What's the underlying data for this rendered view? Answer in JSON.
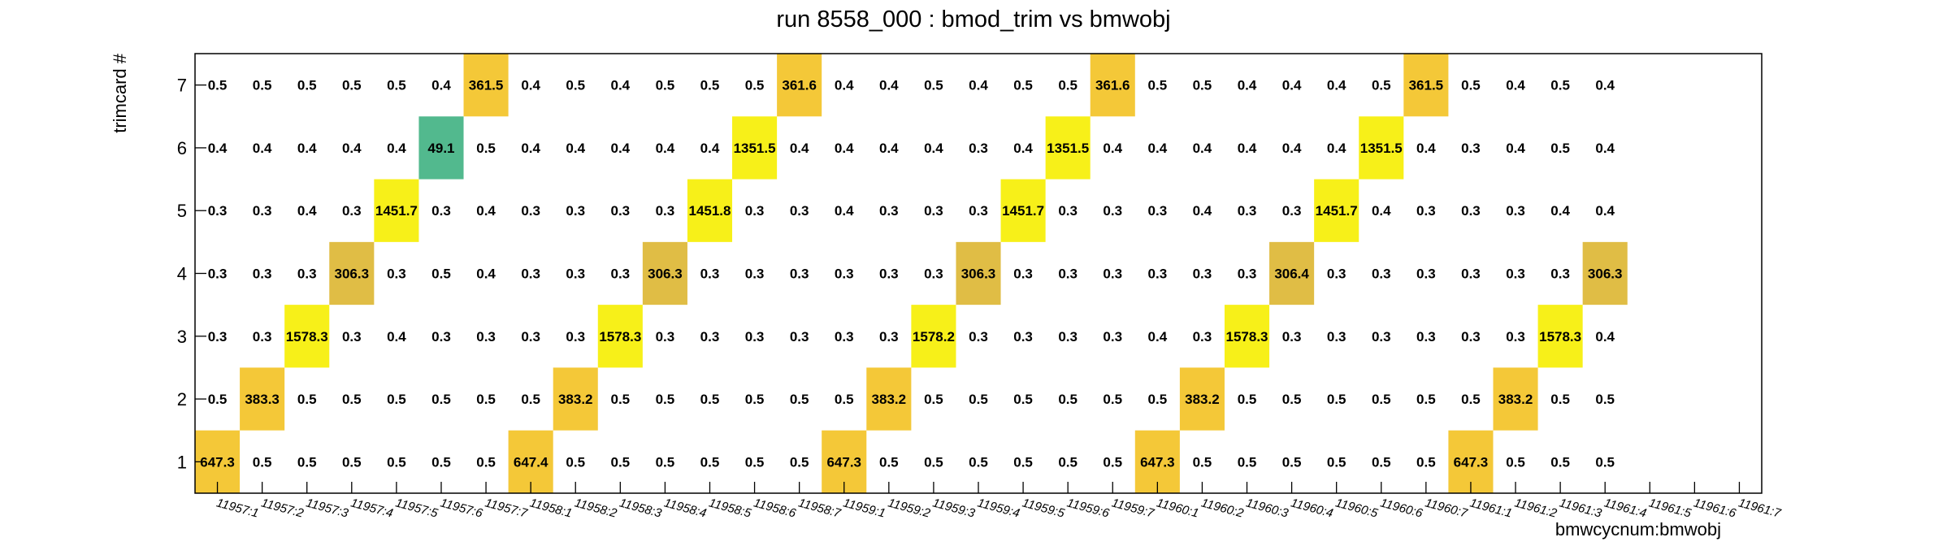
{
  "chart_data": {
    "type": "heatmap",
    "title": "run 8558_000 : bmod_trim vs bmwobj",
    "xlabel": "bmwcycnum:bmwobj",
    "ylabel": "trimcard #",
    "x_categories": [
      "11957:1",
      "11957:2",
      "11957:3",
      "11957:4",
      "11957:5",
      "11957:6",
      "11957:7",
      "11958:1",
      "11958:2",
      "11958:3",
      "11958:4",
      "11958:5",
      "11958:6",
      "11958:7",
      "11959:1",
      "11959:2",
      "11959:3",
      "11959:4",
      "11959:5",
      "11959:6",
      "11959:7",
      "11960:1",
      "11960:2",
      "11960:3",
      "11960:4",
      "11960:5",
      "11960:6",
      "11960:7",
      "11961:1",
      "11961:2",
      "11961:3",
      "11961:4",
      "11961:5",
      "11961:6",
      "11961:7"
    ],
    "y_categories": [
      "1",
      "2",
      "3",
      "4",
      "5",
      "6",
      "7"
    ],
    "rows": [
      {
        "y": "7",
        "values": [
          0.5,
          0.5,
          0.5,
          0.5,
          0.5,
          0.4,
          361.5,
          0.4,
          0.5,
          0.4,
          0.5,
          0.5,
          0.5,
          361.6,
          0.4,
          0.4,
          0.5,
          0.4,
          0.5,
          0.5,
          361.6,
          0.5,
          0.5,
          0.4,
          0.4,
          0.4,
          0.5,
          361.5,
          0.5,
          0.4,
          0.5,
          0.4,
          null,
          null,
          null
        ]
      },
      {
        "y": "6",
        "values": [
          0.4,
          0.4,
          0.4,
          0.4,
          0.4,
          49.1,
          0.5,
          0.4,
          0.4,
          0.4,
          0.4,
          0.4,
          1351.5,
          0.4,
          0.4,
          0.4,
          0.4,
          0.3,
          0.4,
          1351.5,
          0.4,
          0.4,
          0.4,
          0.4,
          0.4,
          0.4,
          1351.5,
          0.4,
          0.3,
          0.4,
          0.5,
          0.4,
          null,
          null,
          null
        ]
      },
      {
        "y": "5",
        "values": [
          0.3,
          0.3,
          0.4,
          0.3,
          1451.7,
          0.3,
          0.4,
          0.3,
          0.3,
          0.3,
          0.3,
          1451.8,
          0.3,
          0.3,
          0.4,
          0.3,
          0.3,
          0.3,
          1451.7,
          0.3,
          0.3,
          0.3,
          0.4,
          0.3,
          0.3,
          1451.7,
          0.4,
          0.3,
          0.3,
          0.3,
          0.4,
          0.4,
          null,
          null,
          null
        ]
      },
      {
        "y": "4",
        "values": [
          0.3,
          0.3,
          0.3,
          306.3,
          0.3,
          0.5,
          0.4,
          0.3,
          0.3,
          0.3,
          306.3,
          0.3,
          0.3,
          0.3,
          0.3,
          0.3,
          0.3,
          306.3,
          0.3,
          0.3,
          0.3,
          0.3,
          0.3,
          0.3,
          306.4,
          0.3,
          0.3,
          0.3,
          0.3,
          0.3,
          0.3,
          306.3,
          null,
          null,
          null
        ]
      },
      {
        "y": "3",
        "values": [
          0.3,
          0.3,
          1578.3,
          0.3,
          0.4,
          0.3,
          0.3,
          0.3,
          0.3,
          1578.3,
          0.3,
          0.3,
          0.3,
          0.3,
          0.3,
          0.3,
          1578.2,
          0.3,
          0.3,
          0.3,
          0.3,
          0.4,
          0.3,
          1578.3,
          0.3,
          0.3,
          0.3,
          0.3,
          0.3,
          0.3,
          1578.3,
          0.4,
          null,
          null,
          null
        ]
      },
      {
        "y": "2",
        "values": [
          0.5,
          383.3,
          0.5,
          0.5,
          0.5,
          0.5,
          0.5,
          0.5,
          383.2,
          0.5,
          0.5,
          0.5,
          0.5,
          0.5,
          0.5,
          383.2,
          0.5,
          0.5,
          0.5,
          0.5,
          0.5,
          0.5,
          383.2,
          0.5,
          0.5,
          0.5,
          0.5,
          0.5,
          0.5,
          383.2,
          0.5,
          0.5,
          null,
          null,
          null
        ]
      },
      {
        "y": "1",
        "values": [
          647.3,
          0.5,
          0.5,
          0.5,
          0.5,
          0.5,
          0.5,
          647.4,
          0.5,
          0.5,
          0.5,
          0.5,
          0.5,
          0.5,
          647.3,
          0.5,
          0.5,
          0.5,
          0.5,
          0.5,
          0.5,
          647.3,
          0.5,
          0.5,
          0.5,
          0.5,
          0.5,
          0.5,
          647.3,
          0.5,
          0.5,
          0.5,
          null,
          null,
          null
        ]
      }
    ],
    "grid": false,
    "legend": "none",
    "colors": {
      "high": "#f7f019",
      "mid": "#f4c838",
      "mid_low": "#e0bd45",
      "low": "#52b98e",
      "axis": "#000000"
    }
  }
}
